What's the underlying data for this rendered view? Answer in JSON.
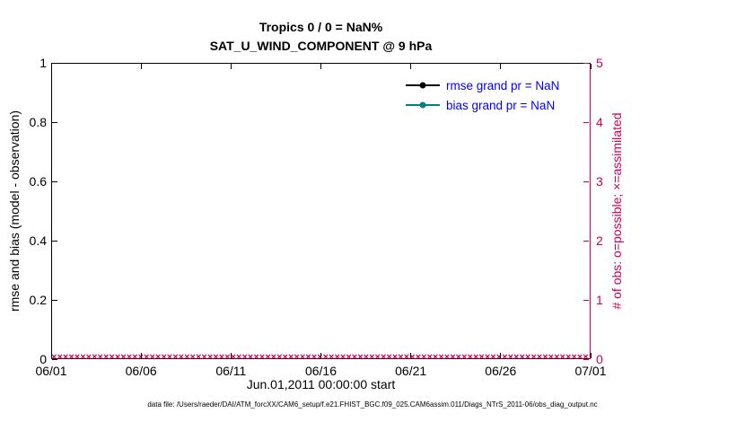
{
  "title": {
    "line1": "Tropics 0 / 0 = NaN%",
    "line2": "SAT_U_WIND_COMPONENT @ 9 hPa"
  },
  "axes": {
    "left": {
      "label": "rmse and bias (model - observation)",
      "ticks": [
        "0",
        "0.2",
        "0.4",
        "0.6",
        "0.8",
        "1"
      ],
      "range": [
        0,
        1
      ],
      "color": "#000000"
    },
    "right": {
      "label": "# of obs: o=possible; ×=assimilated",
      "ticks": [
        "0",
        "1",
        "2",
        "3",
        "4",
        "5"
      ],
      "range": [
        0,
        5
      ],
      "color": "#d10056"
    },
    "x": {
      "label": "Jun.01,2011 00:00:00 start",
      "ticks": [
        "06/01",
        "06/06",
        "06/11",
        "06/16",
        "06/21",
        "06/26",
        "07/01"
      ]
    }
  },
  "legend": [
    {
      "label": "rmse grand pr = NaN",
      "color": "#000000",
      "text_color": "#0000ff"
    },
    {
      "label": "bias grand pr = NaN",
      "color": "#008080",
      "text_color": "#0000ff"
    }
  ],
  "markers": {
    "symbol": "×",
    "count": 120,
    "color": "#d10056"
  },
  "footer": "data file: /Users/raeder/DAI/ATM_forcXX/CAM6_setup/f.e21.FHIST_BGC.f09_025.CAM6assim.011/Diags_NTrS_2011-06/obs_diag_output.nc",
  "chart_data": {
    "type": "line",
    "title": "Tropics 0 / 0 = NaN%",
    "subtitle": "SAT_U_WIND_COMPONENT @ 9 hPa",
    "xlabel": "Jun.01,2011 00:00:00 start",
    "x_ticks": [
      "06/01",
      "06/06",
      "06/11",
      "06/16",
      "06/21",
      "06/26",
      "07/01"
    ],
    "x_range": [
      "2011-06-01",
      "2011-07-01"
    ],
    "left_axis": {
      "label": "rmse and bias (model - observation)",
      "ylim": [
        0,
        1
      ],
      "ticks": [
        0,
        0.2,
        0.4,
        0.6,
        0.8,
        1
      ]
    },
    "right_axis": {
      "label": "# of obs: o=possible; ×=assimilated",
      "ylim": [
        0,
        5
      ],
      "ticks": [
        0,
        1,
        2,
        3,
        4,
        5
      ]
    },
    "grid": false,
    "legend_position": "top-right-inside",
    "series": [
      {
        "name": "rmse",
        "legend": "rmse grand pr = NaN",
        "axis": "left",
        "color": "#000000",
        "values": "all NaN — no curve plotted"
      },
      {
        "name": "bias",
        "legend": "bias grand pr = NaN",
        "axis": "left",
        "color": "#008080",
        "values": "all NaN — no curve plotted"
      },
      {
        "name": "obs assimilated (×)",
        "axis": "right",
        "color": "#d10056",
        "marker": "×",
        "constant_value": 0,
        "n_points": 120
      },
      {
        "name": "obs possible (o)",
        "axis": "right",
        "color": "#d10056",
        "marker": "o",
        "constant_value": 0,
        "n_points": 120
      }
    ]
  }
}
